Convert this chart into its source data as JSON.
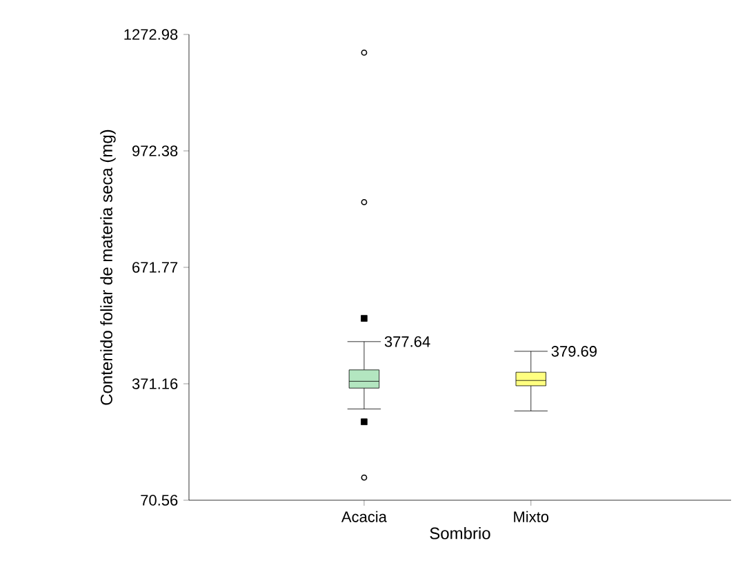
{
  "chart_data": {
    "type": "box",
    "xlabel": "Sombrio",
    "ylabel": "Contenido foliar de materia seca (mg)",
    "categories": [
      "Acacia",
      "Mixto"
    ],
    "colors": [
      "#b3e6c0",
      "#ffff80"
    ],
    "boxes": [
      {
        "low": 306,
        "q1": 360,
        "median": 377.64,
        "q3": 407,
        "high": 480,
        "outliers": [
          1226,
          840,
          129
        ]
      },
      {
        "low": 301,
        "q1": 366,
        "median": 379.69,
        "q3": 401,
        "high": 455
      }
    ],
    "series": [
      {
        "type": "scatter",
        "marker": "square",
        "color": "#000000",
        "x": [
          "Acacia",
          "Acacia"
        ],
        "values": [
          540,
          273
        ]
      }
    ],
    "annotations": [
      "377.64",
      "379.69"
    ],
    "ylim": [
      70.56,
      1272.98
    ],
    "yticks": [
      70.56,
      371.16,
      671.77,
      972.38,
      1272.98
    ],
    "grid": false
  }
}
